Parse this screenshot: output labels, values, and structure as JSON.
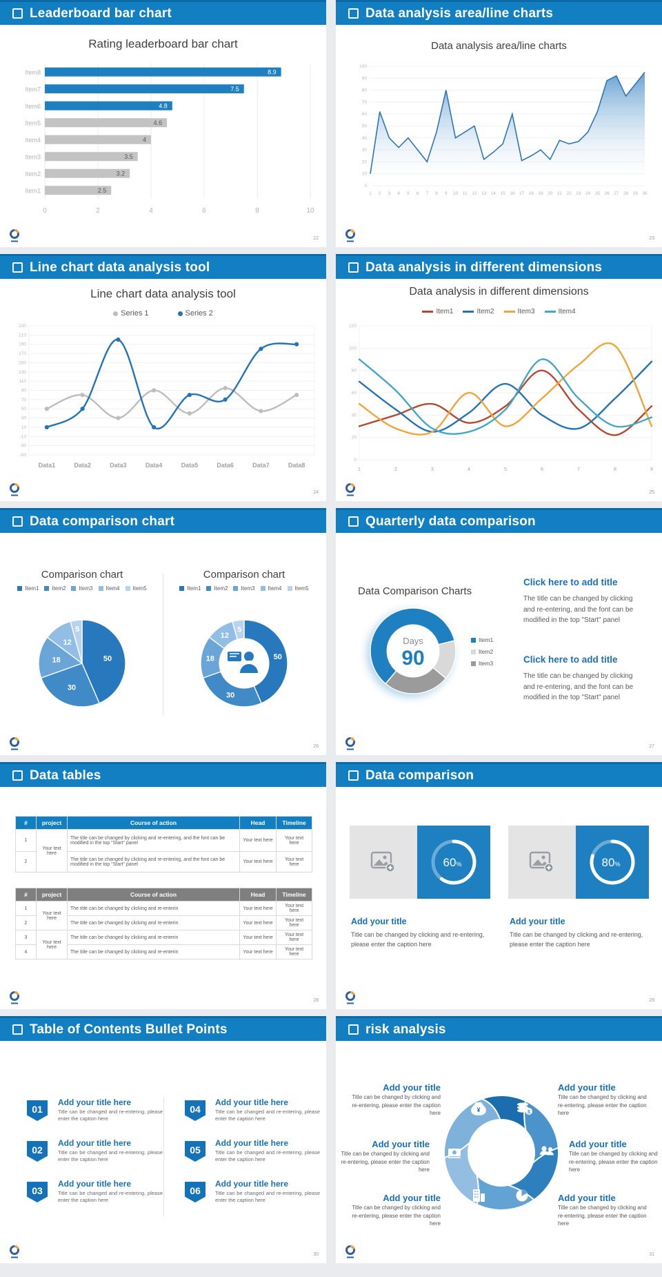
{
  "theme": {
    "header_blue": "#117fc2",
    "header_edge": "#0c69a6",
    "accent_blue": "#1e7fc1",
    "gray_bar": "#c3c3c3",
    "title_text": "#3f3f3f",
    "body_text": "#595959",
    "page_bg": "#e9ebee",
    "link_blue": "#1a70b8"
  },
  "slides": [
    {
      "header": "Leaderboard bar chart",
      "page": "22"
    },
    {
      "header": "Data analysis area/line charts",
      "page": "23"
    },
    {
      "header": "Line chart data analysis tool",
      "page": "24"
    },
    {
      "header": "Data analysis in different dimensions",
      "page": "25"
    },
    {
      "header": "Data comparison chart",
      "page": "26"
    },
    {
      "header": "Quarterly data comparison",
      "page": "27",
      "caption": "Data Comparison Charts",
      "blocks": [
        {
          "title": "Click here to add title",
          "body": "The title can be changed by clicking and re-entering, and the font can be modified in the top \"Start\" panel"
        },
        {
          "title": "Click here to add title",
          "body": "The title can be changed by clicking and re-entering, and the font can be modified in the top \"Start\" panel"
        }
      ]
    },
    {
      "header": "Data tables",
      "page": "28",
      "table1": {
        "headers": [
          "#",
          "project",
          "Course of action",
          "Head",
          "Timeline"
        ],
        "rows": [
          {
            "num": "1",
            "project": "Your text here",
            "course": "The title can be changed by clicking and re-entering, and the font can be modified in the top \"Start\" panel",
            "head": "Your text here",
            "timeline": "Your text here"
          },
          {
            "num": "2",
            "course": "The title can be changed by clicking and re-entering, and the font can be modified in the top \"Start\" panel",
            "head": "Your text here",
            "timeline": "Your text here"
          }
        ]
      },
      "table2": {
        "headers": [
          "#",
          "project",
          "Course of action",
          "Head",
          "Timeline"
        ],
        "rows": [
          {
            "num": "1",
            "project": "Your text here",
            "course": "The title can be changed by clicking and re-enterin",
            "head": "Your text here",
            "timeline": "Your text here"
          },
          {
            "num": "2",
            "course": "The title can be changed by clicking and re-enterin",
            "head": "Your text here",
            "timeline": "Your text here"
          },
          {
            "num": "3",
            "project": "Your text here",
            "course": "The title can be changed by clicking and re-enterin",
            "head": "Your text here",
            "timeline": "Your text here"
          },
          {
            "num": "4",
            "course": "The title can be changed by clicking and re-enterin",
            "head": "Your text here",
            "timeline": "Your text here"
          }
        ]
      }
    },
    {
      "header": "Data comparison",
      "page": "29",
      "cards": [
        {
          "title": "Add your title",
          "caption": "Title can be changed by clicking and re-entering, please enter the caption here"
        },
        {
          "title": "Add your title",
          "caption": "Title can be changed by clicking and re-entering, please enter the caption here"
        }
      ]
    },
    {
      "header": "Table of Contents Bullet Points",
      "page": "30",
      "items": [
        {
          "num": "01",
          "title": "Add your title here",
          "caption": "Title can be changed and re-entering, please enter the caption here"
        },
        {
          "num": "02",
          "title": "Add your title here",
          "caption": "Title can be changed and re-entering, please enter the caption here"
        },
        {
          "num": "03",
          "title": "Add your title here",
          "caption": "Title can be changed and re-entering, please enter the caption here"
        },
        {
          "num": "04",
          "title": "Add your title here",
          "caption": "Title can be changed and re-entering, please enter the caption here"
        },
        {
          "num": "05",
          "title": "Add your title here",
          "caption": "Title can be changed and re-entering, please enter the caption here"
        },
        {
          "num": "06",
          "title": "Add your title here",
          "caption": "Title can be changed and re-entering, please enter the caption here"
        }
      ]
    },
    {
      "header": "risk analysis",
      "page": "31",
      "items": [
        {
          "title": "Add your title",
          "caption": "Title can be changed by clicking and re-entering, please enter the caption here"
        },
        {
          "title": "Add your title",
          "caption": "Title can be changed by clicking and re-entering, please enter the caption here"
        },
        {
          "title": "Add your title",
          "caption": "Title can be changed by clicking and re-entering, please enter the caption here"
        },
        {
          "title": "Add your title",
          "caption": "Title can be changed by clicking and re-entering, please enter the caption here"
        },
        {
          "title": "Add your title",
          "caption": "Title can be changed by clicking and re-entering, please enter the caption here"
        },
        {
          "title": "Add your title",
          "caption": "Title can be changed by clicking and re-entering, please enter the caption here"
        }
      ],
      "icons": [
        "money-bag",
        "coins",
        "people",
        "pie-chart",
        "building",
        "cash"
      ]
    }
  ],
  "chart_data": [
    {
      "id": "leaderboard",
      "type": "bar",
      "orientation": "horizontal",
      "title": "Rating leaderboard bar chart",
      "categories": [
        "Item8",
        "Item7",
        "Item6",
        "Item5",
        "Item4",
        "Item3",
        "Item2",
        "Item1"
      ],
      "values": [
        8.9,
        7.5,
        4.8,
        4.6,
        4,
        3.5,
        3.2,
        2.5
      ],
      "colors": [
        "#1e7fc1",
        "#1e7fc1",
        "#1e7fc1",
        "#c3c3c3",
        "#c3c3c3",
        "#c3c3c3",
        "#c3c3c3",
        "#c3c3c3"
      ],
      "xlim": [
        0,
        10
      ],
      "xticks": [
        0,
        2,
        4,
        6,
        8,
        10
      ],
      "grid": true,
      "legend": "none"
    },
    {
      "id": "area",
      "type": "area",
      "title": "Data analysis area/line charts",
      "x": [
        1,
        2,
        3,
        4,
        5,
        6,
        7,
        8,
        9,
        10,
        11,
        12,
        13,
        14,
        15,
        16,
        17,
        18,
        19,
        20,
        21,
        22,
        23,
        24,
        25,
        26,
        27,
        28,
        29,
        30
      ],
      "values": [
        10,
        62,
        40,
        32,
        40,
        30,
        20,
        45,
        80,
        40,
        45,
        50,
        22,
        28,
        35,
        60,
        21,
        25,
        30,
        22,
        38,
        35,
        37,
        45,
        62,
        88,
        92,
        75,
        85,
        95
      ],
      "line_color": "#2e75b6",
      "ylim": [
        0,
        100
      ],
      "ystep": 10,
      "grid": true,
      "legend": "none"
    },
    {
      "id": "line2",
      "type": "line",
      "title": "Line chart data analysis tool",
      "categories": [
        "Data1",
        "Data2",
        "Data3",
        "Data4",
        "Data5",
        "Data6",
        "Data7",
        "Data8"
      ],
      "series": [
        {
          "name": "Series 1",
          "color": "#bdbdbd",
          "values": [
            50,
            80,
            30,
            90,
            40,
            95,
            45,
            80
          ],
          "dots": true
        },
        {
          "name": "Series 2",
          "color": "#2273b8",
          "values": [
            10,
            50,
            200,
            10,
            80,
            70,
            180,
            190
          ],
          "dots": true
        }
      ],
      "ylim": [
        -50,
        230
      ],
      "ystep": 20,
      "grid": true,
      "legend_position": "top"
    },
    {
      "id": "line4",
      "type": "line",
      "title": "Data analysis in different dimensions",
      "x": [
        1,
        2,
        3,
        4,
        5,
        6,
        7,
        8,
        9
      ],
      "series": [
        {
          "name": "Item1",
          "color": "#b5492f",
          "values": [
            30,
            40,
            50,
            33,
            48,
            80,
            45,
            22,
            48
          ]
        },
        {
          "name": "Item2",
          "color": "#2273b8",
          "values": [
            70,
            45,
            25,
            42,
            68,
            40,
            28,
            55,
            88
          ]
        },
        {
          "name": "Item3",
          "color": "#f2a43a",
          "values": [
            50,
            28,
            25,
            60,
            30,
            55,
            85,
            102,
            30
          ]
        },
        {
          "name": "Item4",
          "color": "#41a8c8",
          "values": [
            90,
            62,
            28,
            25,
            45,
            90,
            55,
            30,
            38
          ]
        }
      ],
      "ylim": [
        0,
        120
      ],
      "ystep": 20,
      "grid": true,
      "legend_position": "top"
    },
    {
      "id": "pie",
      "type": "pie",
      "title": "Comparison chart",
      "labels": [
        "Item1",
        "Item2",
        "Item3",
        "Item4",
        "Item5"
      ],
      "values": [
        50,
        30,
        18,
        12,
        5
      ],
      "colors": [
        "#2878bd",
        "#3f8ac7",
        "#6aa5d8",
        "#92bde4",
        "#b9d3ee"
      ],
      "legend_position": "top"
    },
    {
      "id": "donut",
      "type": "pie",
      "title": "Comparison chart",
      "inner_ratio": 0.58,
      "labels": [
        "Item1",
        "Item2",
        "Item3",
        "Item4",
        "Item5"
      ],
      "values": [
        50,
        30,
        18,
        12,
        5
      ],
      "colors": [
        "#2878bd",
        "#3f8ac7",
        "#6aa5d8",
        "#92bde4",
        "#b9d3ee"
      ],
      "legend_position": "top",
      "center_icon": "presenter"
    },
    {
      "id": "days",
      "type": "pie",
      "inner_ratio": 0.62,
      "rotation": 220,
      "labels_show": false,
      "labels": [
        "Item1",
        "Item2",
        "Item3"
      ],
      "values": [
        60,
        15,
        25
      ],
      "colors": [
        "#1e7fc1",
        "#d9d9d9",
        "#9b9b9b"
      ],
      "center_top": "Days",
      "center_value": "90",
      "legend_position": "right"
    },
    {
      "id": "gauge60",
      "type": "progress",
      "value": 60,
      "suffix": "%",
      "ring_color": "#ffffff"
    },
    {
      "id": "gauge80",
      "type": "progress",
      "value": 80,
      "suffix": "%",
      "ring_color": "#ffffff"
    }
  ]
}
